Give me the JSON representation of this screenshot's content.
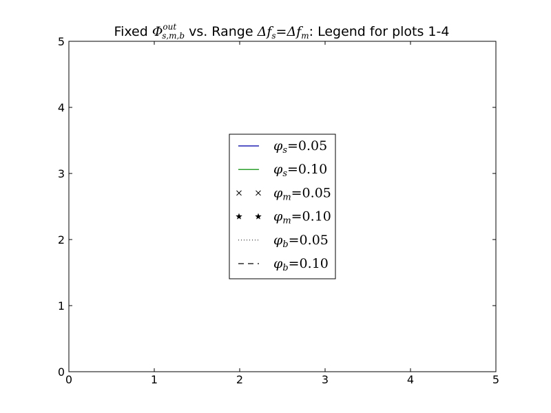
{
  "chart_data": {
    "type": "line",
    "title": {
      "prefix": "Fixed ",
      "phi": "Φ",
      "phi_sup": "out",
      "phi_sub": "s,m,b",
      "middle": " vs. Range ",
      "delta1": "Δ",
      "f1": "f",
      "f1_sub": "s",
      "eq": "=",
      "delta2": "Δ",
      "f2": "f",
      "f2_sub": "m",
      "suffix": ": Legend for plots 1-4"
    },
    "xlabel": "",
    "ylabel": "",
    "xlim": [
      0,
      5
    ],
    "ylim": [
      0,
      5
    ],
    "xticks": [
      0,
      1,
      2,
      3,
      4,
      5
    ],
    "yticks": [
      0,
      1,
      2,
      3,
      4,
      5
    ],
    "grid": false,
    "legend_position": "center",
    "series": [
      {
        "name": "φs=0.05",
        "sym": "φ",
        "sub": "s",
        "val": "=0.05",
        "color": "#1f1fb4",
        "style": "solid",
        "marker": "none"
      },
      {
        "name": "φs=0.10",
        "sym": "φ",
        "sub": "s",
        "val": "=0.10",
        "color": "#2ca02c",
        "style": "solid",
        "marker": "none"
      },
      {
        "name": "φm=0.05",
        "sym": "φ",
        "sub": "m",
        "val": "=0.05",
        "color": "#000000",
        "style": "none",
        "marker": "x"
      },
      {
        "name": "φm=0.10",
        "sym": "φ",
        "sub": "m",
        "val": "=0.10",
        "color": "#000000",
        "style": "none",
        "marker": "star"
      },
      {
        "name": "φb=0.05",
        "sym": "φ",
        "sub": "b",
        "val": "=0.05",
        "color": "#000000",
        "style": "dotted",
        "marker": "none"
      },
      {
        "name": "φb=0.10",
        "sym": "φ",
        "sub": "b",
        "val": "=0.10",
        "color": "#000000",
        "style": "dashed",
        "marker": "none"
      }
    ]
  }
}
